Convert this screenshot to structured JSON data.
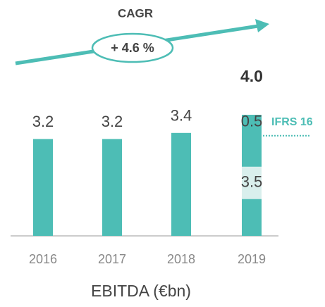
{
  "chart_data": {
    "type": "stacked_bar",
    "categories": [
      "2016",
      "2017",
      "2018",
      "2019"
    ],
    "series": [
      {
        "color": "#4dbdb5",
        "values": [
          3.2,
          3.2,
          3.4,
          3.5
        ]
      },
      {
        "name": "IFRS 16",
        "color": "#4dbdb5",
        "values": [
          null,
          null,
          null,
          0.5
        ]
      }
    ],
    "total": {
      "index": 3,
      "value": 4,
      "label": "4.0"
    },
    "ylim": [
      0,
      4
    ],
    "x_label": "EBITDA (€bn)",
    "cagr_title": "CAGR",
    "cagr": "+ 4.6 %"
  }
}
